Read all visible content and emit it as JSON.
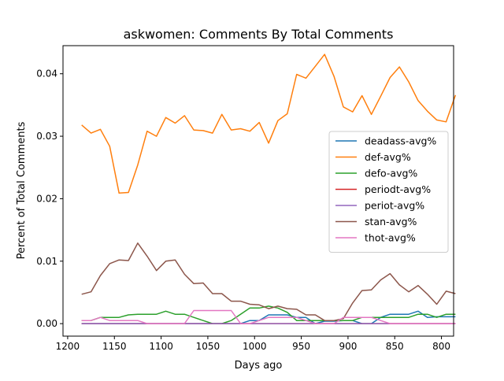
{
  "chart_data": {
    "type": "line",
    "title": "askwomen: Comments By Total Comments",
    "xlabel": "Days ago",
    "ylabel": "Percent of Total Comments",
    "xlim": [
      1205,
      787
    ],
    "ylim": [
      -0.002,
      0.0445
    ],
    "x_inverted": true,
    "x_ticks": [
      1200,
      1150,
      1100,
      1050,
      1000,
      950,
      900,
      850,
      800
    ],
    "y_ticks": [
      0.0,
      0.01,
      0.02,
      0.03,
      0.04
    ],
    "y_tick_labels": [
      "0.00",
      "0.01",
      "0.02",
      "0.03",
      "0.04"
    ],
    "grid": false,
    "legend_position": "center-right",
    "x": [
      1185,
      1175,
      1165,
      1155,
      1145,
      1135,
      1125,
      1115,
      1105,
      1095,
      1085,
      1075,
      1065,
      1055,
      1045,
      1035,
      1025,
      1015,
      1005,
      995,
      985,
      975,
      965,
      955,
      945,
      935,
      925,
      915,
      905,
      895,
      885,
      875,
      865,
      855,
      845,
      835,
      825,
      815,
      805,
      795,
      785
    ],
    "series": [
      {
        "name": "deadass-avg%",
        "color": "#1f77b4",
        "values": [
          0,
          0,
          0,
          0,
          0,
          0,
          0,
          0,
          0,
          0,
          0,
          0,
          0,
          0,
          0,
          0,
          0,
          0,
          0.0005,
          0.0005,
          0.0014,
          0.0014,
          0.0014,
          0.001,
          0.001,
          0,
          0.0004,
          0.0004,
          0.0005,
          0.0005,
          0,
          0,
          0.001,
          0.0015,
          0.0015,
          0.0015,
          0.002,
          0.001,
          0.0011,
          0.0011,
          0.0011
        ]
      },
      {
        "name": "def-avg%",
        "color": "#ff7f0e",
        "values": [
          0.0318,
          0.0305,
          0.0311,
          0.0284,
          0.0209,
          0.021,
          0.0254,
          0.0308,
          0.03,
          0.033,
          0.0321,
          0.0333,
          0.031,
          0.0309,
          0.0305,
          0.0335,
          0.031,
          0.0312,
          0.0308,
          0.0322,
          0.0289,
          0.0325,
          0.0336,
          0.0399,
          0.0393,
          0.0412,
          0.0431,
          0.0396,
          0.0347,
          0.0339,
          0.0365,
          0.0335,
          0.0364,
          0.0394,
          0.0411,
          0.0387,
          0.0357,
          0.034,
          0.0326,
          0.0323,
          0.0366
        ]
      },
      {
        "name": "defo-avg%",
        "color": "#2ca02c",
        "values": [
          0.0005,
          0.0005,
          0.001,
          0.001,
          0.001,
          0.0014,
          0.0015,
          0.0015,
          0.0015,
          0.002,
          0.0015,
          0.0015,
          0.001,
          0.0005,
          0,
          0,
          0.0005,
          0.0015,
          0.0025,
          0.0025,
          0.0028,
          0.0025,
          0.0018,
          0.0005,
          0.0005,
          0.0005,
          0.0005,
          0.0005,
          0.0005,
          0.0005,
          0.001,
          0.001,
          0.001,
          0.001,
          0.001,
          0.001,
          0.0015,
          0.0015,
          0.001,
          0.0015,
          0.0015
        ]
      },
      {
        "name": "periodt-avg%",
        "color": "#d62728",
        "values": [
          0,
          0,
          0,
          0,
          0,
          0,
          0,
          0,
          0,
          0,
          0,
          0,
          0,
          0,
          0,
          0,
          0,
          0,
          0,
          0,
          0,
          0,
          0,
          0,
          0,
          0,
          0,
          0,
          0,
          0,
          0,
          0,
          0,
          0,
          0,
          0,
          0,
          0,
          0,
          0,
          0
        ]
      },
      {
        "name": "periot-avg%",
        "color": "#9467bd",
        "values": [
          0,
          0,
          0,
          0,
          0,
          0,
          0,
          0,
          0,
          0,
          0,
          0,
          0,
          0,
          0,
          0,
          0,
          0,
          0,
          0,
          0,
          0,
          0,
          0,
          0,
          0,
          0,
          0,
          0,
          0,
          0,
          0,
          0,
          0,
          0,
          0,
          0,
          0,
          0,
          0,
          0
        ]
      },
      {
        "name": "stan-avg%",
        "color": "#8c564b",
        "values": [
          0.0047,
          0.0051,
          0.0077,
          0.0096,
          0.0102,
          0.0101,
          0.0129,
          0.0108,
          0.0085,
          0.01,
          0.0102,
          0.0079,
          0.0064,
          0.0065,
          0.0048,
          0.0048,
          0.0036,
          0.0036,
          0.0031,
          0.003,
          0.0024,
          0.0028,
          0.0024,
          0.0023,
          0.0014,
          0.0014,
          0.0005,
          0.0005,
          0.0008,
          0.0033,
          0.0053,
          0.0054,
          0.007,
          0.008,
          0.0062,
          0.0051,
          0.0061,
          0.0047,
          0.0031,
          0.0052,
          0.0048
        ]
      },
      {
        "name": "thot-avg%",
        "color": "#e377c2",
        "values": [
          0.0005,
          0.0005,
          0.001,
          0.0005,
          0.0005,
          0.0005,
          0.0005,
          0,
          0,
          0,
          0,
          0,
          0.0021,
          0.0021,
          0.0021,
          0.0021,
          0.0021,
          0,
          0,
          0.0005,
          0.001,
          0.001,
          0.001,
          0.001,
          0.0005,
          0,
          0,
          0,
          0.001,
          0.001,
          0.001,
          0.001,
          0.0005,
          0,
          0,
          0,
          0,
          0,
          0,
          0,
          0
        ]
      }
    ]
  }
}
